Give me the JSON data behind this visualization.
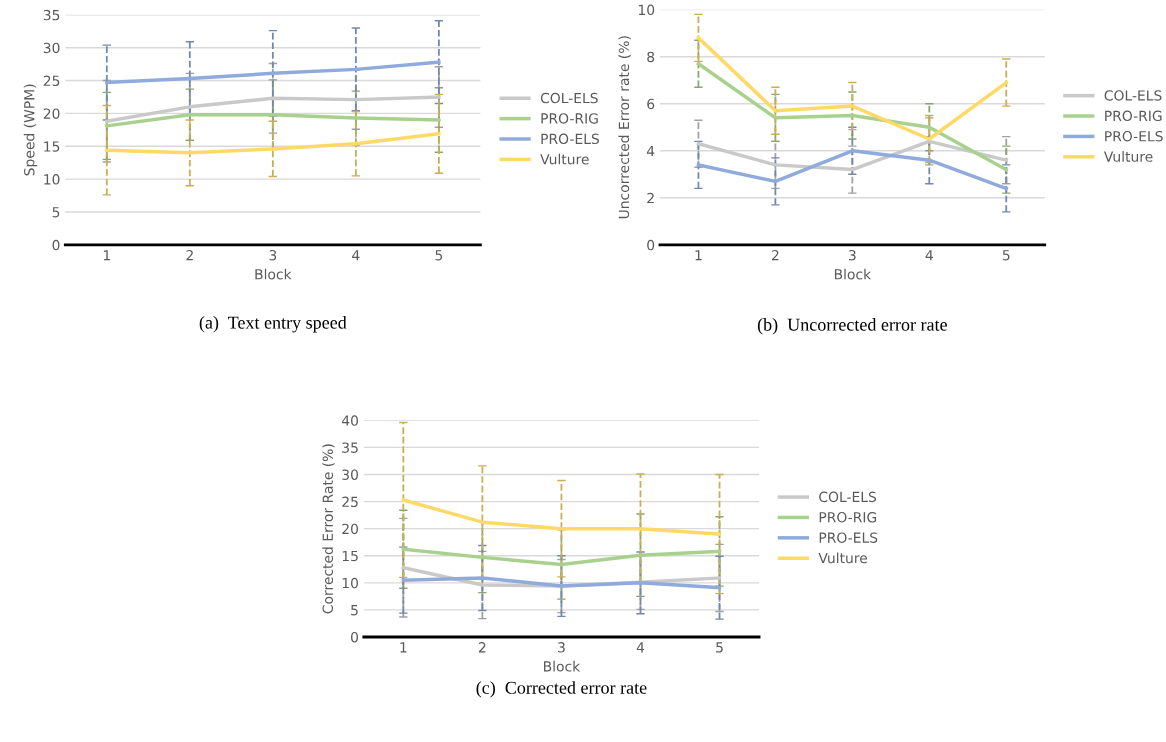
{
  "chart_data": [
    {
      "type": "line",
      "title": "(a)  Text entry speed",
      "xlabel": "Block",
      "ylabel": "Speed (WPM)",
      "categories": [
        "1",
        "2",
        "3",
        "4",
        "5"
      ],
      "ylim": [
        0,
        35
      ],
      "yticks": [
        0,
        5,
        10,
        15,
        20,
        25,
        30,
        35
      ],
      "grid": "y",
      "legend": "right",
      "marker": "none",
      "line_style": "solid",
      "series": [
        {
          "name": "COL-ELS",
          "color": "#c9c9c9",
          "values": [
            18.8,
            21.0,
            22.3,
            22.1,
            22.5
          ],
          "errors": [
            6.2,
            5.1,
            5.3,
            4.5,
            4.6
          ]
        },
        {
          "name": "PRO-RIG",
          "color": "#a9d18e",
          "values": [
            18.1,
            19.8,
            19.8,
            19.3,
            19.0
          ],
          "errors": [
            5.1,
            3.9,
            5.3,
            4.1,
            4.9
          ]
        },
        {
          "name": "PRO-ELS",
          "color": "#8faadc",
          "values": [
            24.7,
            25.3,
            26.1,
            26.7,
            27.8
          ],
          "errors": [
            5.7,
            5.6,
            6.5,
            6.3,
            6.3
          ]
        },
        {
          "name": "Vulture",
          "color": "#ffd966",
          "values": [
            14.4,
            14.0,
            14.6,
            15.4,
            16.9
          ],
          "errors": [
            6.8,
            5.0,
            4.2,
            4.9,
            6.0
          ]
        }
      ]
    },
    {
      "type": "line",
      "title": "(b)  Uncorrected error rate",
      "xlabel": "Block",
      "ylabel": "Uncorrected Error rate (%)",
      "categories": [
        "1",
        "2",
        "3",
        "4",
        "5"
      ],
      "ylim": [
        0,
        10
      ],
      "yticks": [
        0,
        2,
        4,
        6,
        8,
        10
      ],
      "grid": "y",
      "legend": "right",
      "marker": "none",
      "line_style": "solid",
      "series": [
        {
          "name": "COL-ELS",
          "color": "#c9c9c9",
          "values": [
            4.3,
            3.4,
            3.2,
            4.4,
            3.6
          ],
          "errors": [
            1.0,
            1.0,
            1.0,
            1.0,
            1.0
          ]
        },
        {
          "name": "PRO-RIG",
          "color": "#a9d18e",
          "values": [
            7.7,
            5.4,
            5.5,
            5.0,
            3.2
          ],
          "errors": [
            1.0,
            1.0,
            1.0,
            1.0,
            1.0
          ]
        },
        {
          "name": "PRO-ELS",
          "color": "#8faadc",
          "values": [
            3.4,
            2.7,
            4.0,
            3.6,
            2.4
          ],
          "errors": [
            1.0,
            1.0,
            1.0,
            1.0,
            1.0
          ]
        },
        {
          "name": "Vulture",
          "color": "#ffd966",
          "values": [
            8.8,
            5.7,
            5.9,
            4.5,
            6.9
          ],
          "errors": [
            1.0,
            1.0,
            1.0,
            1.0,
            1.0
          ]
        }
      ]
    },
    {
      "type": "line",
      "title": "(c)  Corrected error rate",
      "xlabel": "Block",
      "ylabel": "Corrected Error Rate (%)",
      "categories": [
        "1",
        "2",
        "3",
        "4",
        "5"
      ],
      "ylim": [
        0,
        40
      ],
      "yticks": [
        0,
        5,
        10,
        15,
        20,
        25,
        30,
        35,
        40
      ],
      "grid": "y",
      "legend": "right",
      "marker": "none",
      "line_style": "solid",
      "series": [
        {
          "name": "COL-ELS",
          "color": "#c9c9c9",
          "values": [
            12.8,
            9.6,
            9.4,
            10.1,
            10.9
          ],
          "errors": [
            9.1,
            6.2,
            4.9,
            5.0,
            6.2
          ]
        },
        {
          "name": "PRO-RIG",
          "color": "#a9d18e",
          "values": [
            16.2,
            14.7,
            13.4,
            15.1,
            15.8
          ],
          "errors": [
            7.2,
            6.5,
            6.4,
            7.6,
            6.4
          ]
        },
        {
          "name": "PRO-ELS",
          "color": "#8faadc",
          "values": [
            10.5,
            10.9,
            9.4,
            10.0,
            9.1
          ],
          "errors": [
            6.1,
            6.0,
            5.6,
            5.7,
            5.8
          ]
        },
        {
          "name": "Vulture",
          "color": "#ffd966",
          "values": [
            25.3,
            21.2,
            20.0,
            20.0,
            19.0
          ],
          "errors": [
            14.3,
            10.4,
            8.9,
            10.1,
            11.0
          ]
        }
      ]
    }
  ]
}
